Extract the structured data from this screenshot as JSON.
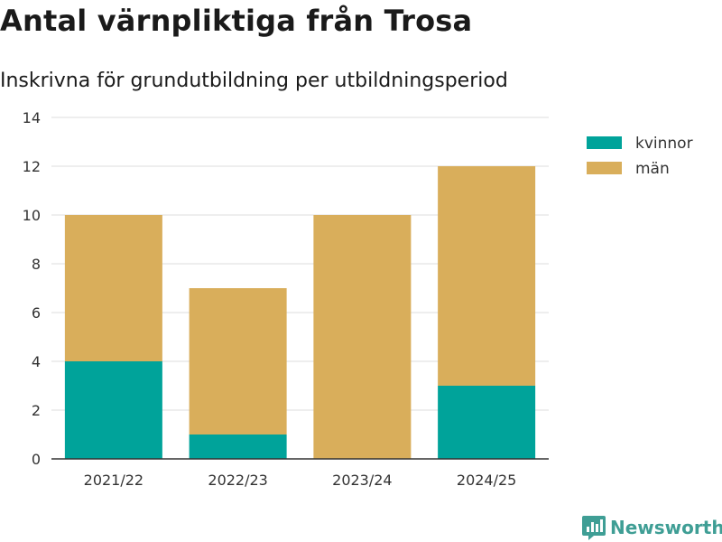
{
  "header": {
    "title": "Antal värnpliktiga från Trosa",
    "subtitle": "Inskrivna för grundutbildning per utbildningsperiod"
  },
  "brand": {
    "name": "Newsworthy",
    "icon": "newsworthy-logo-icon",
    "color": "#3f9e95"
  },
  "chart_data": {
    "type": "bar",
    "stacked": true,
    "categories": [
      "2021/22",
      "2022/23",
      "2023/24",
      "2024/25"
    ],
    "series": [
      {
        "name": "kvinnor",
        "color": "#00a39a",
        "values": [
          4,
          1,
          0,
          3
        ]
      },
      {
        "name": "män",
        "color": "#d9ae5b",
        "values": [
          6,
          6,
          10,
          9
        ]
      }
    ],
    "yticks": [
      0,
      2,
      4,
      6,
      8,
      10,
      12,
      14
    ],
    "ylim": [
      0,
      14
    ],
    "grid": true,
    "legend_position": "top-right"
  }
}
